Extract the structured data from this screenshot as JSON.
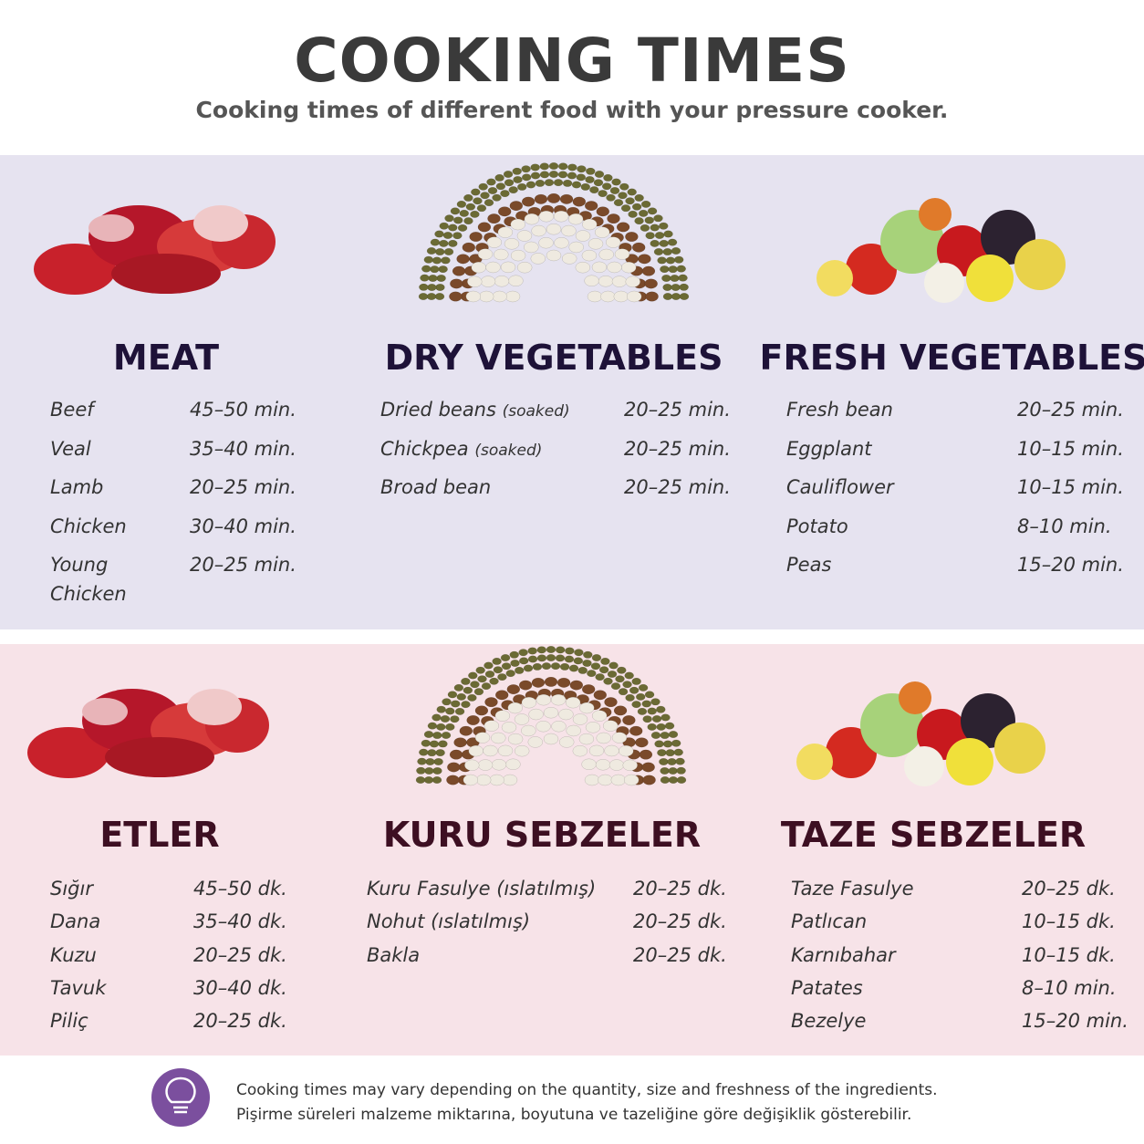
{
  "header": {
    "title": "COOKING TIMES",
    "subtitle": "Cooking times of different food with your pressure cooker."
  },
  "sections": [
    {
      "columns": [
        {
          "title": "MEAT",
          "items": [
            {
              "name": "Beef",
              "time": "45–50 min."
            },
            {
              "name": "Veal",
              "time": "35–40 min."
            },
            {
              "name": "Lamb",
              "time": "20–25 min."
            },
            {
              "name": "Chicken",
              "time": "30–40 min."
            },
            {
              "name": "Young Chicken",
              "time": "20–25 min."
            }
          ]
        },
        {
          "title": "DRY VEGETABLES",
          "items": [
            {
              "name": "Dried beans",
              "note": "(soaked)",
              "time": "20–25 min."
            },
            {
              "name": "Chickpea",
              "note": "(soaked)",
              "time": "20–25 min."
            },
            {
              "name": "Broad bean",
              "time": "20–25 min."
            }
          ]
        },
        {
          "title": "FRESH VEGETABLES",
          "items": [
            {
              "name": "Fresh bean",
              "time": "20–25 min."
            },
            {
              "name": "Eggplant",
              "time": "10–15 min."
            },
            {
              "name": "Cauliflower",
              "time": "10–15 min."
            },
            {
              "name": "Potato",
              "time": "8–10 min."
            },
            {
              "name": "Peas",
              "time": "15–20 min."
            }
          ]
        }
      ]
    },
    {
      "columns": [
        {
          "title": "ETLER",
          "items": [
            {
              "name": "Sığır",
              "time": "45–50 dk."
            },
            {
              "name": "Dana",
              "time": "35–40 dk."
            },
            {
              "name": "Kuzu",
              "time": "20–25 dk."
            },
            {
              "name": "Tavuk",
              "time": "30–40 dk."
            },
            {
              "name": "Piliç",
              "time": "20–25 dk."
            }
          ]
        },
        {
          "title": "KURU SEBZELER",
          "items": [
            {
              "name": "Kuru Fasulye (ıslatılmış)",
              "time": "20–25 dk."
            },
            {
              "name": "Nohut (ıslatılmış)",
              "time": "20–25 dk."
            },
            {
              "name": "Bakla",
              "time": "20–25 dk."
            }
          ]
        },
        {
          "title": "TAZE SEBZELER",
          "items": [
            {
              "name": "Taze Fasulye",
              "time": "20–25 dk."
            },
            {
              "name": "Patlıcan",
              "time": "10–15 dk."
            },
            {
              "name": "Karnıbahar",
              "time": "10–15 dk."
            },
            {
              "name": "Patates",
              "time": "8–10 min."
            },
            {
              "name": "Bezelye",
              "time": "15–20 min."
            }
          ]
        }
      ]
    }
  ],
  "footer": {
    "lines": [
      "Cooking times may vary depending on the quantity, size and freshness of the ingredients.",
      "Pişirme süreleri malzeme miktarına, boyutuna ve tazeliğine göre değişiklik gösterebilir."
    ]
  }
}
